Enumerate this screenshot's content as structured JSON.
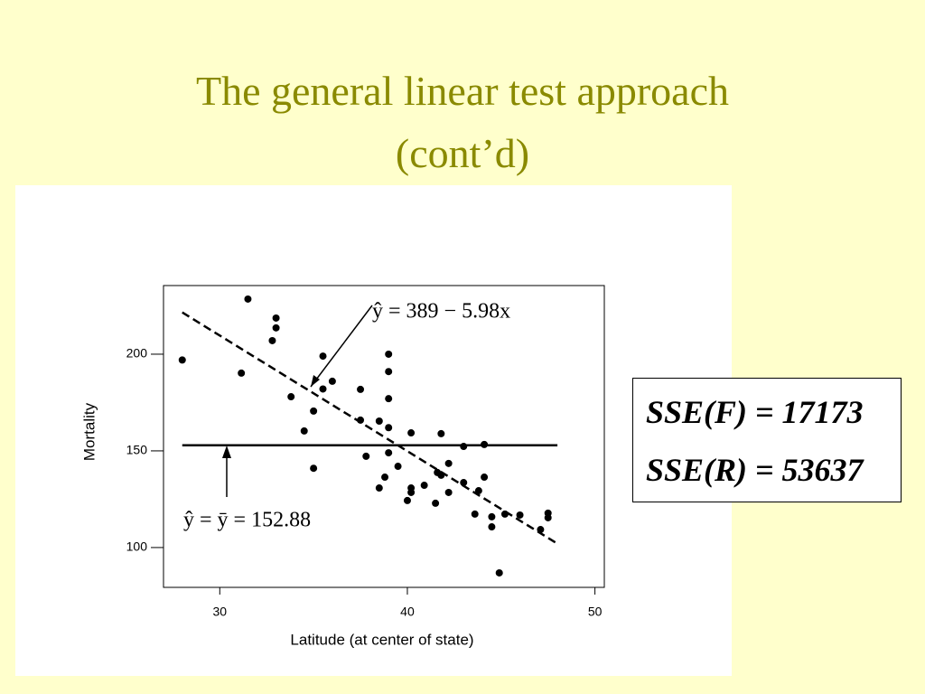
{
  "title": [
    "The general linear test approach",
    "(cont’d)"
  ],
  "sse_box": [
    "SSE(F) = 17173",
    "SSE(R) = 53637"
  ],
  "chart_data": {
    "type": "scatter",
    "x_label": "Latitude (at center of state)",
    "y_label": "Mortality",
    "xlim": [
      27,
      50.5
    ],
    "ylim": [
      79.4,
      235.5
    ],
    "xticks": [
      30,
      40,
      50
    ],
    "yticks": [
      100,
      150,
      200
    ],
    "color": "#000000",
    "x": [
      28.0,
      31.5,
      31.15,
      33.0,
      33.0,
      32.8,
      33.8,
      34.5,
      35.0,
      35.0,
      35.5,
      35.5,
      36.0,
      37.5,
      37.5,
      37.8,
      38.5,
      38.5,
      38.8,
      39.0,
      39.0,
      39.0,
      39.0,
      39.0,
      39.5,
      40.0,
      40.2,
      40.2,
      40.2,
      40.9,
      41.8,
      41.6,
      41.8,
      42.2,
      42.2,
      41.5,
      43.0,
      43.0,
      43.6,
      43.8,
      44.1,
      44.1,
      44.5,
      44.5,
      44.9,
      45.2,
      46.0,
      47.1,
      47.5,
      47.5
    ],
    "values": [
      197,
      228.5,
      190.2,
      218.7,
      213.6,
      207,
      178,
      160.3,
      170.6,
      141,
      199,
      182,
      186,
      181.8,
      165.9,
      147.2,
      165.4,
      130.8,
      136.4,
      200,
      191,
      177,
      162,
      149,
      142,
      124.3,
      128.5,
      159.3,
      130.8,
      132.2,
      158.9,
      138.8,
      137.4,
      143.5,
      128.5,
      122.9,
      152.3,
      133.6,
      117.3,
      129.4,
      153.3,
      136.4,
      115.9,
      110.7,
      86.9,
      117.3,
      116.8,
      109.3,
      117.8,
      115.4
    ],
    "fit_lines": [
      {
        "style": "dashed",
        "x": [
          28,
          48
        ],
        "values": [
          221.6,
          102.0
        ]
      },
      {
        "style": "solid",
        "x": [
          28,
          48
        ],
        "values": [
          152.88,
          152.88
        ]
      }
    ],
    "annotations": [
      "ŷ = 389 − 5.98x",
      "ŷ = ȳ = 152.88"
    ]
  }
}
